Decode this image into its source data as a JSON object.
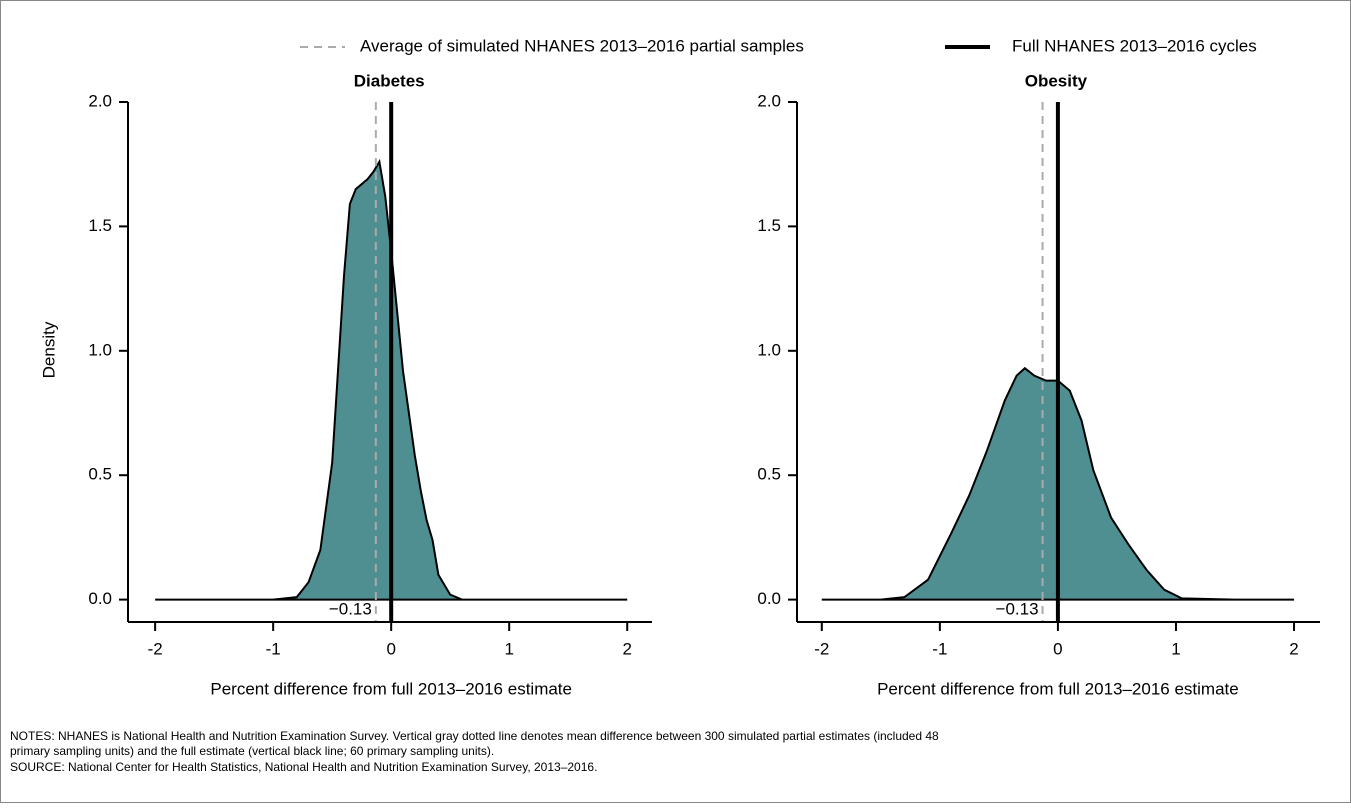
{
  "legend": [
    {
      "name": "Average of simulated NHANES 2013–2016 partial samples",
      "color": "#aaaaaa",
      "style": "dashed"
    },
    {
      "name": "Full NHANES 2013–2016 cycles",
      "color": "#000000",
      "style": "solid"
    }
  ],
  "chart_data": [
    {
      "type": "density",
      "title": "Diabetes",
      "x_label": "Percent difference from full 2013–2016 estimate",
      "y_label": "Density",
      "x": [
        -2,
        -1,
        -0.8,
        -0.7,
        -0.6,
        -0.5,
        -0.4,
        -0.35,
        -0.3,
        -0.2,
        -0.15,
        -0.1,
        -0.05,
        0,
        0.1,
        0.2,
        0.25,
        0.3,
        0.35,
        0.4,
        0.5,
        0.6,
        1,
        2
      ],
      "values": [
        0,
        0,
        0.01,
        0.07,
        0.2,
        0.55,
        1.3,
        1.59,
        1.65,
        1.69,
        1.72,
        1.76,
        1.62,
        1.4,
        0.92,
        0.58,
        0.44,
        0.32,
        0.24,
        0.1,
        0.02,
        0,
        0,
        0
      ],
      "color": "#4f8f92",
      "mean": -0.13,
      "mean_label": "−0.13",
      "reference": 0,
      "xlim": [
        -2.23,
        2.21
      ],
      "ylim": [
        -0.09,
        2.0
      ],
      "xticks": [
        -2,
        -1,
        0,
        1,
        2
      ],
      "yticks": [
        {
          "value": 0,
          "label": "0.0"
        },
        {
          "value": 0.5,
          "label": "0.5"
        },
        {
          "value": 1,
          "label": "1.0"
        },
        {
          "value": 1.5,
          "label": "1.5"
        },
        {
          "value": 2,
          "label": "2.0"
        }
      ]
    },
    {
      "type": "density",
      "title": "Obesity",
      "x_label": "Percent difference from full 2013–2016 estimate",
      "x": [
        -2,
        -1.5,
        -1.3,
        -1.1,
        -0.9,
        -0.75,
        -0.6,
        -0.45,
        -0.35,
        -0.28,
        -0.2,
        -0.1,
        0,
        0.1,
        0.2,
        0.3,
        0.45,
        0.6,
        0.75,
        0.9,
        1.05,
        1.5,
        2
      ],
      "values": [
        0,
        0,
        0.01,
        0.08,
        0.27,
        0.42,
        0.6,
        0.8,
        0.9,
        0.93,
        0.9,
        0.88,
        0.88,
        0.84,
        0.72,
        0.52,
        0.33,
        0.22,
        0.12,
        0.04,
        0.005,
        0,
        0
      ],
      "color": "#4f8f92",
      "mean": -0.13,
      "mean_label": "−0.13",
      "reference": 0,
      "xlim": [
        -2.21,
        2.22
      ],
      "ylim": [
        -0.09,
        2.0
      ],
      "xticks": [
        -2,
        -1,
        0,
        1,
        2
      ],
      "yticks": [
        {
          "value": 0,
          "label": "0.0"
        },
        {
          "value": 0.5,
          "label": "0.5"
        },
        {
          "value": 1,
          "label": "1.0"
        },
        {
          "value": 1.5,
          "label": "1.5"
        },
        {
          "value": 2,
          "label": "2.0"
        }
      ]
    }
  ],
  "notes": [
    "NOTES: NHANES is National Health and Nutrition Examination Survey. Vertical gray dotted line denotes mean difference between 300 simulated partial estimates (included 48",
    "primary sampling units) and the full estimate (vertical black line; 60 primary sampling units).",
    "SOURCE: National Center for Health Statistics, National Health and Nutrition Examination Survey, 2013–2016."
  ]
}
